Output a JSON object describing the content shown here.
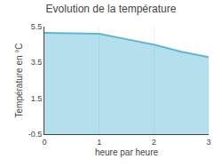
{
  "chart_data": {
    "type": "area",
    "title": "Evolution de la température",
    "x_label": "heure par heure",
    "y_label": "Température en °C",
    "x": [
      0,
      0.5,
      1.0,
      1.5,
      2.0,
      2.5,
      3.0
    ],
    "values": [
      5.15,
      5.13,
      5.1,
      4.8,
      4.5,
      4.1,
      3.8
    ],
    "color": "#5bb8d4",
    "xlim": [
      0,
      3
    ],
    "xticks": [
      0,
      1,
      2,
      3
    ],
    "ylim": [
      -0.5,
      5.5
    ],
    "yticks": [
      -0.5,
      1.5,
      3.5,
      5.5
    ],
    "grid": "x"
  }
}
